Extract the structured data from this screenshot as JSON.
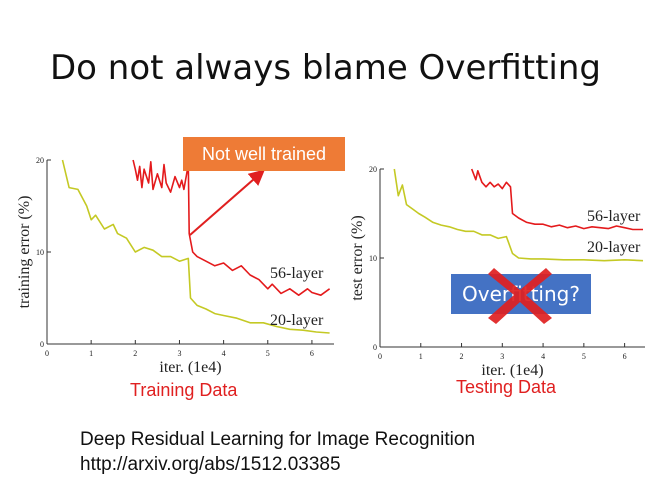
{
  "slide": {
    "title": "Do not always blame Overfitting",
    "callout": "Not well trained",
    "overfitting_label": "Overfitting?",
    "reference_line1": "Deep Residual Learning for Image Recognition",
    "reference_line2": "http://arxiv.org/abs/1512.03385",
    "colors": {
      "caption": "#e02020",
      "callout_bg": "#ee7b36",
      "box_bg": "#4472c4",
      "x_mark": "#e02020"
    }
  },
  "chart_data": [
    {
      "type": "line",
      "caption": "Training Data",
      "xlabel": "iter. (1e4)",
      "ylabel": "training error (%)",
      "xlim": [
        0,
        6.5
      ],
      "ylim": [
        0,
        20
      ],
      "xticks": [
        "0",
        "1",
        "2",
        "3",
        "4",
        "5",
        "6"
      ],
      "yticks": [
        "0",
        "10",
        "20"
      ],
      "series": [
        {
          "name": "56-layer",
          "color": "#e41a1c",
          "x": [
            1.95,
            2.0,
            2.05,
            2.1,
            2.15,
            2.2,
            2.3,
            2.35,
            2.4,
            2.5,
            2.6,
            2.65,
            2.7,
            2.8,
            2.9,
            3.0,
            3.05,
            3.1,
            3.2,
            3.22,
            3.3,
            3.4,
            3.6,
            3.8,
            4.0,
            4.2,
            4.4,
            4.6,
            4.8,
            5.0,
            5.1,
            5.3,
            5.5,
            5.7,
            5.9,
            6.0,
            6.2,
            6.4
          ],
          "y": [
            20,
            19,
            17.8,
            19.3,
            17,
            19,
            17.5,
            19.8,
            16.8,
            18.5,
            17,
            19.5,
            17.5,
            16.5,
            18.2,
            17,
            17.8,
            16.8,
            19.5,
            12,
            10,
            9.5,
            9,
            8.5,
            8.8,
            8,
            8.5,
            7.5,
            7,
            6,
            6.5,
            5.5,
            6,
            5.3,
            6,
            5.6,
            5.3,
            6
          ]
        },
        {
          "name": "20-layer",
          "color": "#c4c924",
          "x": [
            0.35,
            0.5,
            0.7,
            0.9,
            1.0,
            1.1,
            1.3,
            1.5,
            1.6,
            1.8,
            2.0,
            2.2,
            2.4,
            2.6,
            2.8,
            3.0,
            3.2,
            3.25,
            3.4,
            3.6,
            3.8,
            4.0,
            4.3,
            4.6,
            4.9,
            5.2,
            5.5,
            5.8,
            6.1,
            6.4
          ],
          "y": [
            20,
            17,
            16.8,
            15,
            13.5,
            14,
            12.5,
            13,
            12,
            11.5,
            10,
            10.5,
            10.2,
            9.5,
            9.5,
            9,
            9.3,
            5,
            4.2,
            3.8,
            3.3,
            3.1,
            2.8,
            2.3,
            2.3,
            1.9,
            1.6,
            1.5,
            1.3,
            1.2
          ]
        }
      ]
    },
    {
      "type": "line",
      "caption": "Testing Data",
      "xlabel": "iter. (1e4)",
      "ylabel": "test error (%)",
      "xlim": [
        0,
        6.5
      ],
      "ylim": [
        0,
        20
      ],
      "xticks": [
        "0",
        "1",
        "2",
        "3",
        "4",
        "5",
        "6"
      ],
      "yticks": [
        "0",
        "10",
        "20"
      ],
      "series": [
        {
          "name": "56-layer",
          "color": "#e41a1c",
          "x": [
            2.25,
            2.35,
            2.4,
            2.5,
            2.6,
            2.7,
            2.8,
            2.9,
            3.0,
            3.1,
            3.2,
            3.25,
            3.4,
            3.6,
            3.8,
            4.0,
            4.2,
            4.4,
            4.6,
            4.8,
            5.0,
            5.2,
            5.4,
            5.6,
            5.8,
            6.0,
            6.2,
            6.45
          ],
          "y": [
            20,
            18.8,
            19.8,
            18.5,
            18,
            18.5,
            18,
            18.3,
            17.8,
            18.5,
            18,
            15,
            14.5,
            14,
            13.8,
            13.8,
            13.5,
            13.7,
            13.4,
            13.6,
            13.3,
            13.5,
            13.4,
            13.3,
            13.6,
            13.4,
            13.2,
            13.2
          ]
        },
        {
          "name": "20-layer",
          "color": "#c4c924",
          "x": [
            0.35,
            0.45,
            0.55,
            0.65,
            0.8,
            0.95,
            1.1,
            1.3,
            1.5,
            1.7,
            1.9,
            2.1,
            2.3,
            2.5,
            2.7,
            2.9,
            3.1,
            3.25,
            3.4,
            3.7,
            4.0,
            4.5,
            5.0,
            5.5,
            6.0,
            6.45
          ],
          "y": [
            20,
            17,
            18.2,
            16,
            15.5,
            15,
            14.6,
            14,
            13.7,
            13.5,
            13.2,
            13,
            13,
            12.6,
            12.6,
            12.2,
            12.4,
            10.5,
            10,
            9.9,
            9.9,
            9.8,
            9.8,
            9.7,
            9.8,
            9.7
          ]
        }
      ]
    }
  ]
}
